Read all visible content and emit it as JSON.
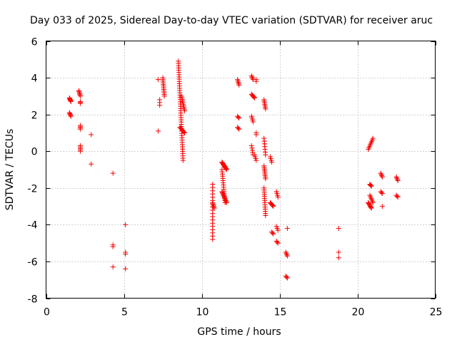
{
  "chart_data": {
    "type": "scatter",
    "title": "Day 033 of 2025, Sidereal Day-to-day VTEC variation (SDTVAR) for receiver aruc",
    "xlabel": "GPS time / hours",
    "ylabel": "SDTVAR / TECUs",
    "xlim": [
      0,
      25
    ],
    "ylim": [
      -8,
      6
    ],
    "xticks": [
      0,
      5,
      10,
      15,
      20,
      25
    ],
    "yticks": [
      -8,
      -6,
      -4,
      -2,
      0,
      2,
      4,
      6
    ],
    "grid": true,
    "marker": "+",
    "color": "#ff0000",
    "segments": [
      {
        "x0": 1.5,
        "x1": 1.6,
        "y0": 2.9,
        "y1": 2.7,
        "n": 6
      },
      {
        "x0": 1.5,
        "x1": 1.6,
        "y0": 2.1,
        "y1": 1.9,
        "n": 5
      },
      {
        "x0": 2.1,
        "x1": 2.2,
        "y0": 3.3,
        "y1": 3.0,
        "n": 6
      },
      {
        "x0": 2.2,
        "x1": 2.2,
        "y0": 2.7,
        "y1": 2.6,
        "n": 3
      },
      {
        "x0": 2.2,
        "x1": 2.2,
        "y0": 1.4,
        "y1": 1.2,
        "n": 4
      },
      {
        "x0": 2.2,
        "x1": 2.2,
        "y0": 0.3,
        "y1": 0.0,
        "n": 5
      },
      {
        "x0": 7.3,
        "x1": 7.3,
        "y0": 2.8,
        "y1": 2.5,
        "n": 3
      },
      {
        "x0": 7.5,
        "x1": 7.6,
        "y0": 4.0,
        "y1": 3.0,
        "n": 12
      },
      {
        "x0": 8.5,
        "x1": 8.8,
        "y0": 4.9,
        "y1": -0.5,
        "n": 45
      },
      {
        "x0": 8.7,
        "x1": 8.9,
        "y0": 3.0,
        "y1": 2.2,
        "n": 10
      },
      {
        "x0": 8.6,
        "x1": 8.9,
        "y0": 1.3,
        "y1": 1.0,
        "n": 8
      },
      {
        "x0": 10.7,
        "x1": 10.7,
        "y0": -1.8,
        "y1": -4.8,
        "n": 18
      },
      {
        "x0": 10.7,
        "x1": 10.8,
        "y0": -2.8,
        "y1": -3.1,
        "n": 6
      },
      {
        "x0": 11.3,
        "x1": 11.6,
        "y0": -0.6,
        "y1": -1.0,
        "n": 14
      },
      {
        "x0": 11.3,
        "x1": 11.5,
        "y0": -1.0,
        "y1": -2.8,
        "n": 16
      },
      {
        "x0": 11.3,
        "x1": 11.6,
        "y0": -2.2,
        "y1": -2.8,
        "n": 12
      },
      {
        "x0": 12.3,
        "x1": 12.4,
        "y0": 3.9,
        "y1": 3.6,
        "n": 5
      },
      {
        "x0": 12.3,
        "x1": 12.4,
        "y0": 1.9,
        "y1": 1.8,
        "n": 3
      },
      {
        "x0": 12.3,
        "x1": 12.4,
        "y0": 1.3,
        "y1": 1.2,
        "n": 3
      },
      {
        "x0": 13.2,
        "x1": 13.3,
        "y0": 4.1,
        "y1": 3.9,
        "n": 4
      },
      {
        "x0": 13.5,
        "x1": 13.5,
        "y0": 3.9,
        "y1": 3.8,
        "n": 2
      },
      {
        "x0": 13.2,
        "x1": 13.4,
        "y0": 3.1,
        "y1": 2.9,
        "n": 6
      },
      {
        "x0": 13.2,
        "x1": 13.3,
        "y0": 1.9,
        "y1": 1.6,
        "n": 4
      },
      {
        "x0": 13.2,
        "x1": 13.3,
        "y0": 0.3,
        "y1": -0.2,
        "n": 5
      },
      {
        "x0": 13.5,
        "x1": 13.5,
        "y0": 1.0,
        "y1": 0.9,
        "n": 2
      },
      {
        "x0": 13.4,
        "x1": 13.5,
        "y0": -0.2,
        "y1": -0.5,
        "n": 4
      },
      {
        "x0": 14.0,
        "x1": 14.1,
        "y0": 2.8,
        "y1": 2.3,
        "n": 7
      },
      {
        "x0": 14.0,
        "x1": 14.1,
        "y0": 0.7,
        "y1": -0.2,
        "n": 7
      },
      {
        "x0": 14.0,
        "x1": 14.1,
        "y0": -0.8,
        "y1": -1.5,
        "n": 9
      },
      {
        "x0": 14.0,
        "x1": 14.1,
        "y0": -2.0,
        "y1": -3.5,
        "n": 14
      },
      {
        "x0": 14.4,
        "x1": 14.5,
        "y0": -0.3,
        "y1": -0.6,
        "n": 4
      },
      {
        "x0": 14.4,
        "x1": 14.6,
        "y0": -2.8,
        "y1": -3.0,
        "n": 6
      },
      {
        "x0": 14.5,
        "x1": 14.6,
        "y0": -4.4,
        "y1": -4.5,
        "n": 3
      },
      {
        "x0": 14.8,
        "x1": 14.9,
        "y0": -2.2,
        "y1": -2.5,
        "n": 4
      },
      {
        "x0": 14.8,
        "x1": 14.9,
        "y0": -4.1,
        "y1": -4.3,
        "n": 3
      },
      {
        "x0": 14.8,
        "x1": 14.9,
        "y0": -4.9,
        "y1": -5.0,
        "n": 3
      },
      {
        "x0": 15.4,
        "x1": 15.5,
        "y0": -5.5,
        "y1": -5.7,
        "n": 4
      },
      {
        "x0": 15.4,
        "x1": 15.5,
        "y0": -6.8,
        "y1": -6.9,
        "n": 3
      },
      {
        "x0": 18.8,
        "x1": 18.8,
        "y0": -5.5,
        "y1": -5.8,
        "n": 2
      },
      {
        "x0": 20.7,
        "x1": 21.0,
        "y0": 0.1,
        "y1": 0.7,
        "n": 8
      },
      {
        "x0": 20.8,
        "x1": 20.9,
        "y0": -1.8,
        "y1": -1.9,
        "n": 4
      },
      {
        "x0": 20.8,
        "x1": 21.0,
        "y0": -2.4,
        "y1": -2.8,
        "n": 6
      },
      {
        "x0": 20.7,
        "x1": 20.9,
        "y0": -2.8,
        "y1": -3.1,
        "n": 8
      },
      {
        "x0": 21.5,
        "x1": 21.6,
        "y0": -1.2,
        "y1": -1.4,
        "n": 4
      },
      {
        "x0": 21.5,
        "x1": 21.6,
        "y0": -2.2,
        "y1": -2.3,
        "n": 3
      },
      {
        "x0": 22.5,
        "x1": 22.6,
        "y0": -1.4,
        "y1": -1.6,
        "n": 4
      },
      {
        "x0": 22.5,
        "x1": 22.6,
        "y0": -2.4,
        "y1": -2.5,
        "n": 3
      }
    ],
    "points": [
      [
        2.9,
        0.9
      ],
      [
        2.9,
        -0.7
      ],
      [
        4.3,
        -1.2
      ],
      [
        4.3,
        -5.1
      ],
      [
        4.3,
        -5.2
      ],
      [
        4.3,
        -6.3
      ],
      [
        5.1,
        -4.0
      ],
      [
        5.1,
        -5.5
      ],
      [
        5.1,
        -5.6
      ],
      [
        5.1,
        -6.4
      ],
      [
        7.2,
        3.9
      ],
      [
        7.2,
        1.1
      ],
      [
        15.5,
        -4.2
      ],
      [
        18.8,
        -4.2
      ],
      [
        21.6,
        -3.0
      ]
    ]
  }
}
